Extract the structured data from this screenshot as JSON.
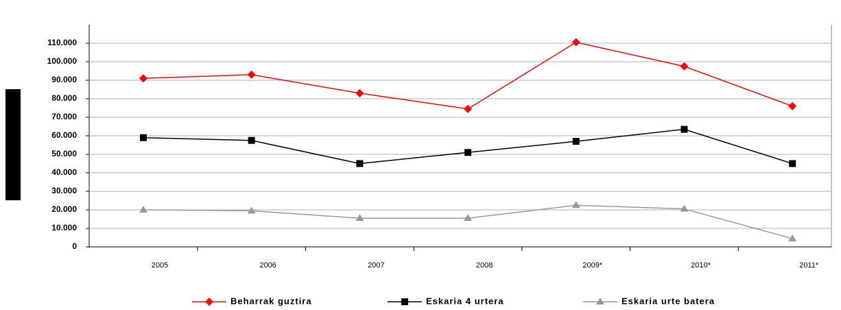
{
  "chart_data": {
    "type": "line",
    "categories": [
      "2005",
      "2006",
      "2007",
      "2008",
      "2009*",
      "2010*",
      "2011*"
    ],
    "series": [
      {
        "name": "Beharrak guztira",
        "color": "#ff0000",
        "marker": "diamond",
        "values": [
          91000,
          93000,
          83000,
          74500,
          110500,
          97500,
          76000
        ]
      },
      {
        "name": "Eskaria 4 urtera",
        "color": "#000000",
        "marker": "square",
        "values": [
          59000,
          57500,
          45000,
          51000,
          57000,
          63500,
          45000
        ]
      },
      {
        "name": "Eskaria urte batera",
        "color": "#999999",
        "marker": "triangle",
        "values": [
          20000,
          19500,
          15500,
          15500,
          22500,
          20500,
          4500
        ]
      }
    ],
    "ylim": [
      0,
      110000
    ],
    "yticks": [
      0,
      {
        "value": 10000,
        "label": "10.000"
      },
      {
        "value": 20000,
        "label": "20.000"
      },
      {
        "value": 30000,
        "label": "30.000"
      },
      {
        "value": 40000,
        "label": "40.000"
      },
      {
        "value": 50000,
        "label": "50.000"
      },
      {
        "value": 60000,
        "label": "60.000"
      },
      {
        "value": 70000,
        "label": "70.000"
      },
      {
        "value": 80000,
        "label": "80.000"
      },
      {
        "value": 90000,
        "label": "90.000"
      },
      {
        "value": 100000,
        "label": "100.000"
      },
      {
        "value": 110000,
        "label": "110.000"
      }
    ],
    "grid": true,
    "legend": "bottom"
  }
}
